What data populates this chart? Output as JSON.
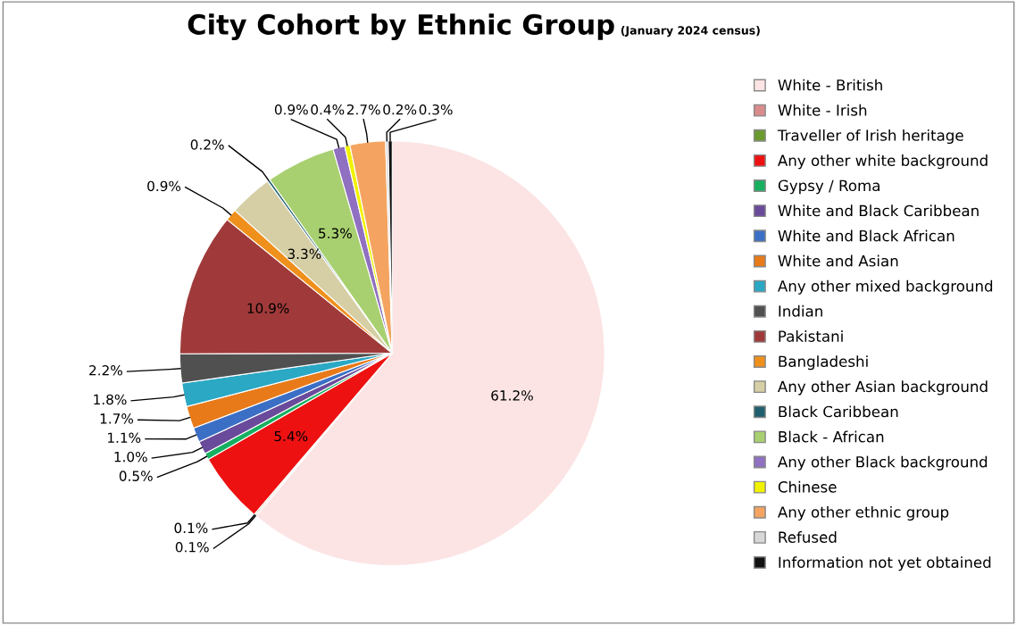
{
  "chart_data": {
    "type": "pie",
    "title": "City Cohort by Ethnic Group",
    "subtitle": "(January 2024 census)",
    "categories": [
      "White - British",
      "White - Irish",
      "Traveller of Irish heritage",
      "Any other white background",
      "Gypsy / Roma",
      "White and Black Caribbean",
      "White and Black African",
      "White and Asian",
      "Any other mixed background",
      "Indian",
      "Pakistani",
      "Bangladeshi",
      "Any other Asian background",
      "Black Caribbean",
      "Black - African",
      "Any other Black background",
      "Chinese",
      "Any other ethnic group",
      "Refused",
      "Information not yet obtained"
    ],
    "values": [
      61.2,
      0.1,
      0.1,
      5.4,
      0.5,
      1.0,
      1.1,
      1.7,
      1.8,
      2.2,
      10.9,
      0.9,
      3.3,
      0.2,
      5.3,
      0.9,
      0.4,
      2.7,
      0.2,
      0.3
    ],
    "value_labels": [
      "61.2%",
      "0.1%",
      "0.1%",
      "5.4%",
      "0.5%",
      "1.0%",
      "1.1%",
      "1.7%",
      "1.8%",
      "2.2%",
      "10.9%",
      "0.9%",
      "3.3%",
      "0.2%",
      "5.3%",
      "0.9%",
      "0.4%",
      "2.7%",
      "0.2%",
      "0.3%"
    ],
    "colors": [
      "#fce4e4",
      "#d98c8c",
      "#6b9a2e",
      "#ee1111",
      "#16b060",
      "#6a4a9a",
      "#3b6fc6",
      "#e87a1a",
      "#2aa8c4",
      "#505050",
      "#a03a3a",
      "#f0901c",
      "#d6cfa6",
      "#1f5f6f",
      "#a8d070",
      "#9070c0",
      "#f2f200",
      "#f4a460",
      "#d8d8d8",
      "#111111"
    ],
    "legend": "right"
  }
}
